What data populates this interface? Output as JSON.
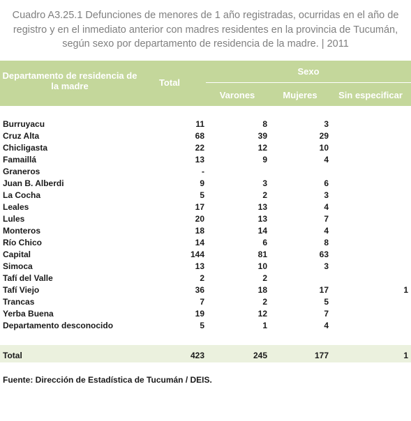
{
  "title": [
    "Cuadro A3.25.1 Defunciones de menores de 1 año registradas, ocurridas en el año de",
    "registro y en el inmediato anterior con madres residentes en la provincia de Tucumán,",
    "según sexo por departamento de residencia de la madre. | 2011"
  ],
  "table": {
    "header": {
      "department": "Departamento de residencia de la madre",
      "total": "Total",
      "sex": "Sexo",
      "male": "Varones",
      "female": "Mujeres",
      "unspecified": "Sin especificar"
    },
    "rows": [
      [
        "Burruyacu",
        11,
        8,
        3,
        null
      ],
      [
        "Cruz Alta",
        68,
        39,
        29,
        null
      ],
      [
        "Chicligasta",
        22,
        12,
        10,
        null
      ],
      [
        "Famaillá",
        13,
        9,
        4,
        null
      ],
      [
        "Graneros",
        "-",
        null,
        null,
        null
      ],
      [
        "Juan B. Alberdi",
        9,
        3,
        6,
        null
      ],
      [
        "La Cocha",
        5,
        2,
        3,
        null
      ],
      [
        "Leales",
        17,
        13,
        4,
        null
      ],
      [
        "Lules",
        20,
        13,
        7,
        null
      ],
      [
        "Monteros",
        18,
        14,
        4,
        null
      ],
      [
        "Río Chico",
        14,
        6,
        8,
        null
      ],
      [
        "Capital",
        144,
        81,
        63,
        null
      ],
      [
        "Simoca",
        13,
        10,
        3,
        null
      ],
      [
        "Tafí del Valle",
        2,
        2,
        null,
        null
      ],
      [
        "Tafí Viejo",
        36,
        18,
        17,
        1
      ],
      [
        "Trancas",
        7,
        2,
        5,
        null
      ],
      [
        "Yerba Buena",
        19,
        12,
        7,
        null
      ],
      [
        "Departamento desconocido",
        5,
        1,
        4,
        null
      ]
    ],
    "total_row": [
      "Total",
      423,
      245,
      177,
      1
    ]
  },
  "source": "Fuente: Dirección de Estadística de Tucumán / DEIS."
}
